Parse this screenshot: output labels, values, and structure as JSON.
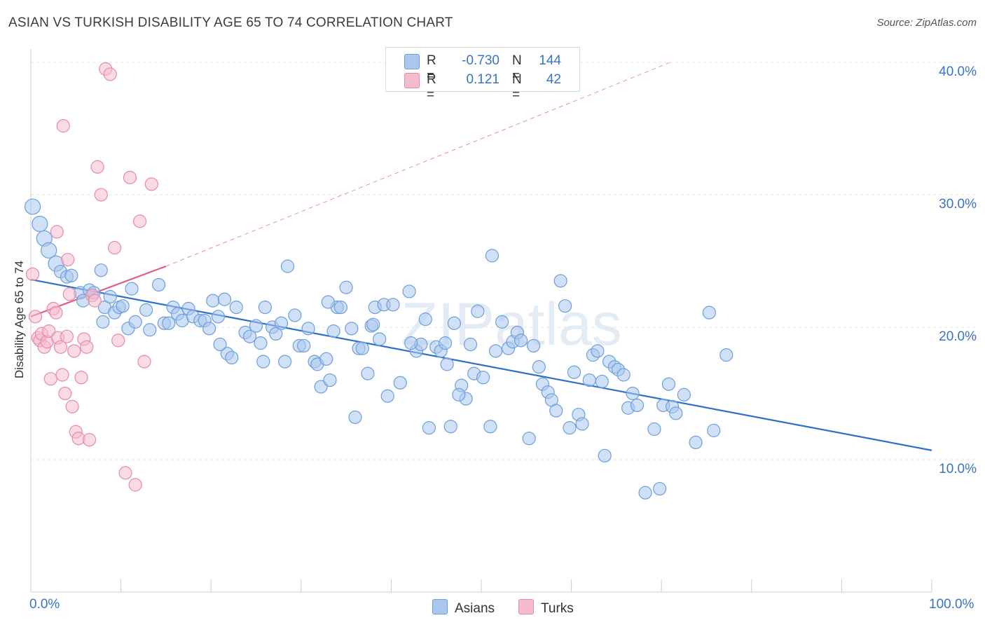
{
  "header": {
    "title": "ASIAN VS TURKISH DISABILITY AGE 65 TO 74 CORRELATION CHART",
    "source": "Source: ZipAtlas.com"
  },
  "watermark": "ZIPatlas",
  "stats": [
    {
      "r_label": "R =",
      "r_value": "-0.730",
      "n_label": "N =",
      "n_value": "144",
      "color": "#a9c7ef",
      "border": "#6d9fdc"
    },
    {
      "r_label": "R =",
      "r_value": "0.121",
      "n_label": "N =",
      "n_value": "42",
      "color": "#f5bcd0",
      "border": "#e68aaa"
    }
  ],
  "legend": [
    {
      "label": "Asians",
      "color": "#a9c7ef",
      "border": "#6d9fdc"
    },
    {
      "label": "Turks",
      "color": "#f5bcd0",
      "border": "#e68aaa"
    }
  ],
  "chart_data": {
    "type": "scatter",
    "title": "ASIAN VS TURKISH DISABILITY AGE 65 TO 74 CORRELATION CHART",
    "ylabel": "Disability Age 65 to 74",
    "xlabel": "",
    "x_tick_labels": [
      "0.0%",
      "100.0%"
    ],
    "y_tick_labels": [
      "10.0%",
      "20.0%",
      "30.0%",
      "40.0%"
    ],
    "xlim": [
      0,
      100
    ],
    "ylim": [
      0,
      41
    ],
    "grid": true,
    "legend_position": "bottom-center",
    "series": [
      {
        "name": "Asians",
        "color": "#6d9fdc",
        "fill": "#a9c7ef",
        "trend": {
          "x": [
            0,
            100
          ],
          "y": [
            23.6,
            10.7
          ],
          "style": "solid",
          "color": "#2f6fcb"
        },
        "points": [
          [
            0.2,
            29.1
          ],
          [
            1.0,
            27.8
          ],
          [
            1.5,
            26.7
          ],
          [
            2.0,
            25.8
          ],
          [
            2.8,
            24.8
          ],
          [
            3.3,
            24.2
          ],
          [
            4.0,
            23.8
          ],
          [
            4.5,
            23.9
          ],
          [
            5.5,
            22.6
          ],
          [
            5.8,
            22.0
          ],
          [
            6.5,
            22.8
          ],
          [
            7.0,
            22.6
          ],
          [
            7.8,
            24.3
          ],
          [
            8.2,
            21.5
          ],
          [
            8.8,
            22.3
          ],
          [
            9.3,
            21.1
          ],
          [
            9.8,
            21.5
          ],
          [
            10.2,
            21.6
          ],
          [
            10.8,
            19.9
          ],
          [
            11.2,
            22.9
          ],
          [
            11.6,
            20.4
          ],
          [
            12.8,
            21.3
          ],
          [
            13.2,
            19.8
          ],
          [
            14.2,
            23.2
          ],
          [
            14.8,
            20.3
          ],
          [
            15.3,
            20.3
          ],
          [
            15.8,
            21.5
          ],
          [
            16.3,
            21.0
          ],
          [
            16.8,
            20.5
          ],
          [
            17.5,
            21.4
          ],
          [
            18.0,
            20.8
          ],
          [
            18.8,
            20.5
          ],
          [
            19.3,
            20.5
          ],
          [
            19.8,
            19.9
          ],
          [
            20.2,
            22.0
          ],
          [
            20.8,
            20.8
          ],
          [
            21.5,
            22.1
          ],
          [
            21.8,
            18.0
          ],
          [
            22.3,
            17.7
          ],
          [
            22.8,
            21.5
          ],
          [
            23.8,
            19.6
          ],
          [
            24.3,
            19.3
          ],
          [
            25.0,
            20.1
          ],
          [
            25.5,
            18.8
          ],
          [
            25.8,
            17.4
          ],
          [
            26.0,
            21.5
          ],
          [
            26.8,
            20.0
          ],
          [
            27.2,
            19.5
          ],
          [
            27.8,
            20.3
          ],
          [
            28.2,
            17.4
          ],
          [
            28.5,
            24.6
          ],
          [
            29.3,
            20.9
          ],
          [
            29.8,
            18.6
          ],
          [
            30.3,
            18.6
          ],
          [
            30.8,
            19.9
          ],
          [
            31.5,
            17.4
          ],
          [
            31.8,
            17.2
          ],
          [
            32.2,
            15.5
          ],
          [
            32.8,
            17.6
          ],
          [
            33.2,
            16.0
          ],
          [
            33.6,
            19.7
          ],
          [
            34.0,
            21.5
          ],
          [
            34.4,
            21.5
          ],
          [
            35.0,
            23.0
          ],
          [
            35.6,
            19.9
          ],
          [
            36.0,
            13.2
          ],
          [
            36.4,
            18.4
          ],
          [
            36.8,
            18.4
          ],
          [
            37.4,
            16.5
          ],
          [
            37.8,
            20.1
          ],
          [
            38.2,
            21.5
          ],
          [
            38.7,
            19.1
          ],
          [
            39.2,
            21.7
          ],
          [
            39.6,
            14.8
          ],
          [
            40.2,
            21.7
          ],
          [
            41.0,
            15.8
          ],
          [
            42.0,
            22.7
          ],
          [
            42.8,
            18.2
          ],
          [
            43.3,
            18.7
          ],
          [
            43.8,
            20.6
          ],
          [
            44.2,
            12.4
          ],
          [
            45.0,
            18.5
          ],
          [
            45.5,
            18.2
          ],
          [
            46.0,
            18.8
          ],
          [
            46.2,
            17.2
          ],
          [
            46.6,
            12.5
          ],
          [
            47.0,
            20.3
          ],
          [
            47.8,
            15.6
          ],
          [
            48.3,
            14.6
          ],
          [
            48.8,
            18.7
          ],
          [
            49.2,
            16.5
          ],
          [
            49.6,
            21.2
          ],
          [
            50.2,
            16.2
          ],
          [
            51.2,
            25.4
          ],
          [
            51.6,
            18.2
          ],
          [
            52.3,
            20.4
          ],
          [
            53.0,
            18.4
          ],
          [
            53.5,
            18.9
          ],
          [
            54.0,
            19.6
          ],
          [
            54.4,
            19.0
          ],
          [
            55.3,
            11.6
          ],
          [
            55.8,
            18.6
          ],
          [
            56.4,
            17.0
          ],
          [
            56.8,
            15.7
          ],
          [
            57.4,
            15.1
          ],
          [
            57.8,
            14.5
          ],
          [
            58.3,
            13.7
          ],
          [
            58.8,
            23.5
          ],
          [
            59.3,
            21.6
          ],
          [
            59.8,
            12.4
          ],
          [
            60.3,
            16.6
          ],
          [
            60.8,
            13.4
          ],
          [
            61.2,
            12.7
          ],
          [
            62.0,
            16.0
          ],
          [
            62.4,
            17.9
          ],
          [
            62.9,
            18.2
          ],
          [
            63.4,
            15.9
          ],
          [
            63.7,
            10.3
          ],
          [
            64.2,
            17.4
          ],
          [
            64.8,
            17.0
          ],
          [
            65.2,
            16.8
          ],
          [
            65.8,
            16.4
          ],
          [
            66.3,
            13.9
          ],
          [
            66.8,
            15.0
          ],
          [
            67.3,
            14.1
          ],
          [
            68.2,
            7.5
          ],
          [
            69.2,
            12.3
          ],
          [
            69.8,
            7.8
          ],
          [
            70.2,
            14.1
          ],
          [
            70.8,
            15.7
          ],
          [
            71.2,
            14.0
          ],
          [
            71.6,
            13.5
          ],
          [
            72.5,
            14.9
          ],
          [
            73.8,
            11.3
          ],
          [
            75.3,
            21.1
          ],
          [
            75.8,
            12.2
          ],
          [
            77.2,
            17.9
          ],
          [
            21.0,
            18.7
          ],
          [
            47.5,
            14.9
          ],
          [
            38.0,
            20.2
          ],
          [
            8.0,
            20.4
          ],
          [
            42.2,
            18.8
          ],
          [
            33.0,
            21.9
          ],
          [
            51.0,
            12.5
          ]
        ]
      },
      {
        "name": "Turks",
        "color": "#e68aaa",
        "fill": "#f5bcd0",
        "trend": {
          "x": [
            0,
            15
          ],
          "y": [
            20.8,
            24.6
          ],
          "style": "solid",
          "color": "#df5f8c",
          "extend_to": [
            71,
            40.0
          ]
        },
        "points": [
          [
            0.2,
            24.0
          ],
          [
            0.5,
            20.8
          ],
          [
            0.8,
            19.2
          ],
          [
            1.0,
            19.0
          ],
          [
            1.2,
            19.5
          ],
          [
            1.5,
            18.5
          ],
          [
            1.8,
            18.9
          ],
          [
            2.0,
            19.7
          ],
          [
            2.2,
            16.1
          ],
          [
            2.5,
            21.4
          ],
          [
            2.8,
            21.1
          ],
          [
            3.0,
            19.2
          ],
          [
            3.3,
            18.5
          ],
          [
            3.5,
            16.4
          ],
          [
            3.8,
            15.0
          ],
          [
            4.0,
            19.3
          ],
          [
            4.3,
            22.5
          ],
          [
            4.6,
            14.0
          ],
          [
            4.8,
            18.2
          ],
          [
            5.0,
            12.1
          ],
          [
            5.3,
            11.6
          ],
          [
            5.6,
            16.2
          ],
          [
            5.9,
            19.1
          ],
          [
            6.2,
            18.5
          ],
          [
            6.5,
            11.5
          ],
          [
            6.8,
            22.4
          ],
          [
            7.1,
            22.0
          ],
          [
            7.4,
            32.1
          ],
          [
            7.8,
            30.0
          ],
          [
            8.3,
            39.5
          ],
          [
            8.8,
            39.1
          ],
          [
            9.3,
            26.0
          ],
          [
            9.7,
            19.0
          ],
          [
            10.5,
            9.0
          ],
          [
            11.0,
            31.3
          ],
          [
            11.6,
            8.1
          ],
          [
            12.1,
            28.0
          ],
          [
            12.6,
            17.4
          ],
          [
            13.4,
            30.8
          ],
          [
            3.6,
            35.2
          ],
          [
            2.9,
            27.2
          ],
          [
            4.1,
            25.1
          ]
        ]
      }
    ]
  }
}
